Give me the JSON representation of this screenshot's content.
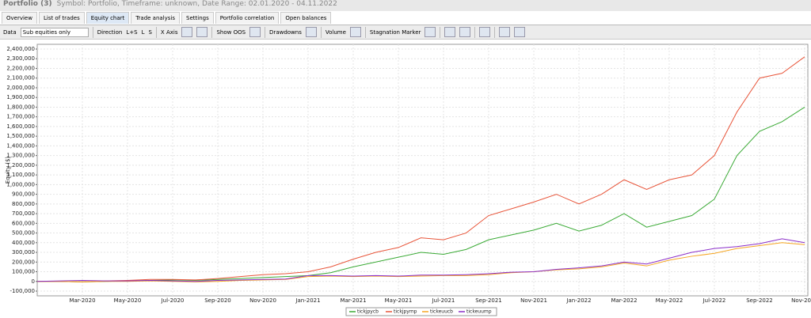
{
  "ui": {
    "title": "Portfolio (3)",
    "subtitle": "Symbol: Portfolio, Timeframe: unknown, Date Range: 02.01.2020 - 04.11.2022",
    "tabs": [
      "Overview",
      "List of trades",
      "Equity chart",
      "Trade analysis",
      "Settings",
      "Portfolio correlation",
      "Open balances"
    ],
    "toolbar": {
      "data": "Data",
      "data_select": "Sub equities only",
      "direction": "Direction",
      "dir_options": [
        "L+S",
        "L",
        "S"
      ],
      "x_axis": "X Axis",
      "show_oos": "Show OOS",
      "drawdowns": "Drawdowns",
      "volume": "Volume",
      "stagnation": "Stagnation Marker"
    }
  },
  "chart_data": {
    "type": "line",
    "y_label": "Equity ($)",
    "grid": true,
    "x": [
      "Jan-2020",
      "Feb-2020",
      "Mar-2020",
      "Apr-2020",
      "May-2020",
      "Jun-2020",
      "Jul-2020",
      "Aug-2020",
      "Sep-2020",
      "Oct-2020",
      "Nov-2020",
      "Dec-2020",
      "Jan-2021",
      "Feb-2021",
      "Mar-2021",
      "Apr-2021",
      "May-2021",
      "Jun-2021",
      "Jul-2021",
      "Aug-2021",
      "Sep-2021",
      "Oct-2021",
      "Nov-2021",
      "Dec-2021",
      "Jan-2022",
      "Feb-2022",
      "Mar-2022",
      "Apr-2022",
      "May-2022",
      "Jun-2022",
      "Jul-2022",
      "Aug-2022",
      "Sep-2022",
      "Oct-2022",
      "Nov-2022"
    ],
    "xticks": [
      "Mar-2020",
      "May-2020",
      "Jul-2020",
      "Sep-2020",
      "Nov-2020",
      "Jan-2021",
      "Mar-2021",
      "May-2021",
      "Jul-2021",
      "Sep-2021",
      "Nov-2021",
      "Jan-2022",
      "Mar-2022",
      "May-2022",
      "Jul-2022",
      "Sep-2022",
      "Nov-2022"
    ],
    "ylim": [
      -100000,
      2400000
    ],
    "yticks": [
      {
        "value": -100000,
        "label": "-100,000"
      },
      0,
      {
        "value": 100000,
        "label": "100,000"
      },
      {
        "value": 200000,
        "label": "200,000"
      },
      {
        "value": 300000,
        "label": "300,000"
      },
      {
        "value": 400000,
        "label": "400,000"
      },
      {
        "value": 500000,
        "label": "500,000"
      },
      {
        "value": 600000,
        "label": "600,000"
      },
      {
        "value": 700000,
        "label": "700,000"
      },
      {
        "value": 800000,
        "label": "800,000"
      },
      {
        "value": 900000,
        "label": "900,000"
      },
      {
        "value": 1000000,
        "label": "1,000,000"
      },
      {
        "value": 1100000,
        "label": "1,100,000"
      },
      {
        "value": 1200000,
        "label": "1,200,000"
      },
      {
        "value": 1300000,
        "label": "1,300,000"
      },
      {
        "value": 1400000,
        "label": "1,400,000"
      },
      {
        "value": 1500000,
        "label": "1,500,000"
      },
      {
        "value": 1600000,
        "label": "1,600,000"
      },
      {
        "value": 1700000,
        "label": "1,700,000"
      },
      {
        "value": 1800000,
        "label": "1,800,000"
      },
      {
        "value": 1900000,
        "label": "1,900,000"
      },
      {
        "value": 2000000,
        "label": "2,000,000"
      },
      {
        "value": 2100000,
        "label": "2,100,000"
      },
      {
        "value": 2200000,
        "label": "2,200,000"
      },
      {
        "value": 2300000,
        "label": "2,300,000"
      },
      {
        "value": 2400000,
        "label": "2,400,000"
      }
    ],
    "series": [
      {
        "name": "tickjpycb",
        "color": "#3aaa35",
        "values": [
          0,
          0,
          -5000,
          0,
          5000,
          10000,
          15000,
          10000,
          20000,
          30000,
          40000,
          50000,
          60000,
          90000,
          150000,
          200000,
          250000,
          300000,
          280000,
          330000,
          430000,
          480000,
          530000,
          600000,
          520000,
          580000,
          700000,
          560000,
          620000,
          680000,
          850000,
          1300000,
          1550000,
          1650000,
          1800000
        ]
      },
      {
        "name": "tickjpymp",
        "color": "#e8553a",
        "values": [
          0,
          0,
          -5000,
          5000,
          10000,
          20000,
          20000,
          15000,
          30000,
          50000,
          70000,
          80000,
          100000,
          150000,
          230000,
          300000,
          350000,
          450000,
          430000,
          500000,
          680000,
          750000,
          820000,
          900000,
          800000,
          900000,
          1050000,
          950000,
          1050000,
          1100000,
          1300000,
          1750000,
          2100000,
          2150000,
          2320000
        ]
      },
      {
        "name": "tickeuucb",
        "color": "#f5a623",
        "values": [
          0,
          0,
          -5000,
          0,
          0,
          5000,
          0,
          -5000,
          0,
          10000,
          15000,
          20000,
          50000,
          55000,
          50000,
          55000,
          50000,
          55000,
          60000,
          60000,
          70000,
          90000,
          100000,
          120000,
          130000,
          150000,
          190000,
          160000,
          220000,
          260000,
          290000,
          340000,
          370000,
          400000,
          380000
        ]
      },
      {
        "name": "tickeuump",
        "color": "#8b2fc9",
        "values": [
          0,
          5000,
          10000,
          5000,
          5000,
          10000,
          5000,
          0,
          10000,
          15000,
          20000,
          25000,
          60000,
          60000,
          55000,
          60000,
          55000,
          65000,
          65000,
          70000,
          80000,
          95000,
          100000,
          125000,
          140000,
          160000,
          200000,
          180000,
          240000,
          300000,
          340000,
          360000,
          390000,
          440000,
          400000
        ]
      }
    ]
  }
}
